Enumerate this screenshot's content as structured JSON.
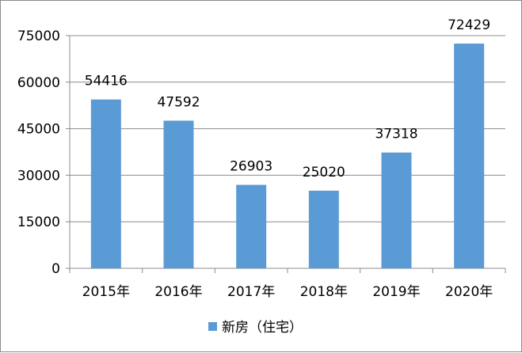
{
  "chart_data": {
    "type": "bar",
    "categories": [
      "2015年",
      "2016年",
      "2017年",
      "2018年",
      "2019年",
      "2020年"
    ],
    "series": [
      {
        "name": "新房（住宅）",
        "values": [
          54416,
          47592,
          26903,
          25020,
          37318,
          72429
        ]
      }
    ],
    "title": "",
    "xlabel": "",
    "ylabel": "",
    "ylim": [
      0,
      75000
    ],
    "yticks": [
      0,
      15000,
      30000,
      45000,
      60000,
      75000
    ],
    "grid": true,
    "legend": "bottom",
    "data_labels": true,
    "colors": {
      "bar": "#5b9bd5",
      "grid": "#8c8c8c",
      "axis": "#8c8c8c"
    }
  }
}
